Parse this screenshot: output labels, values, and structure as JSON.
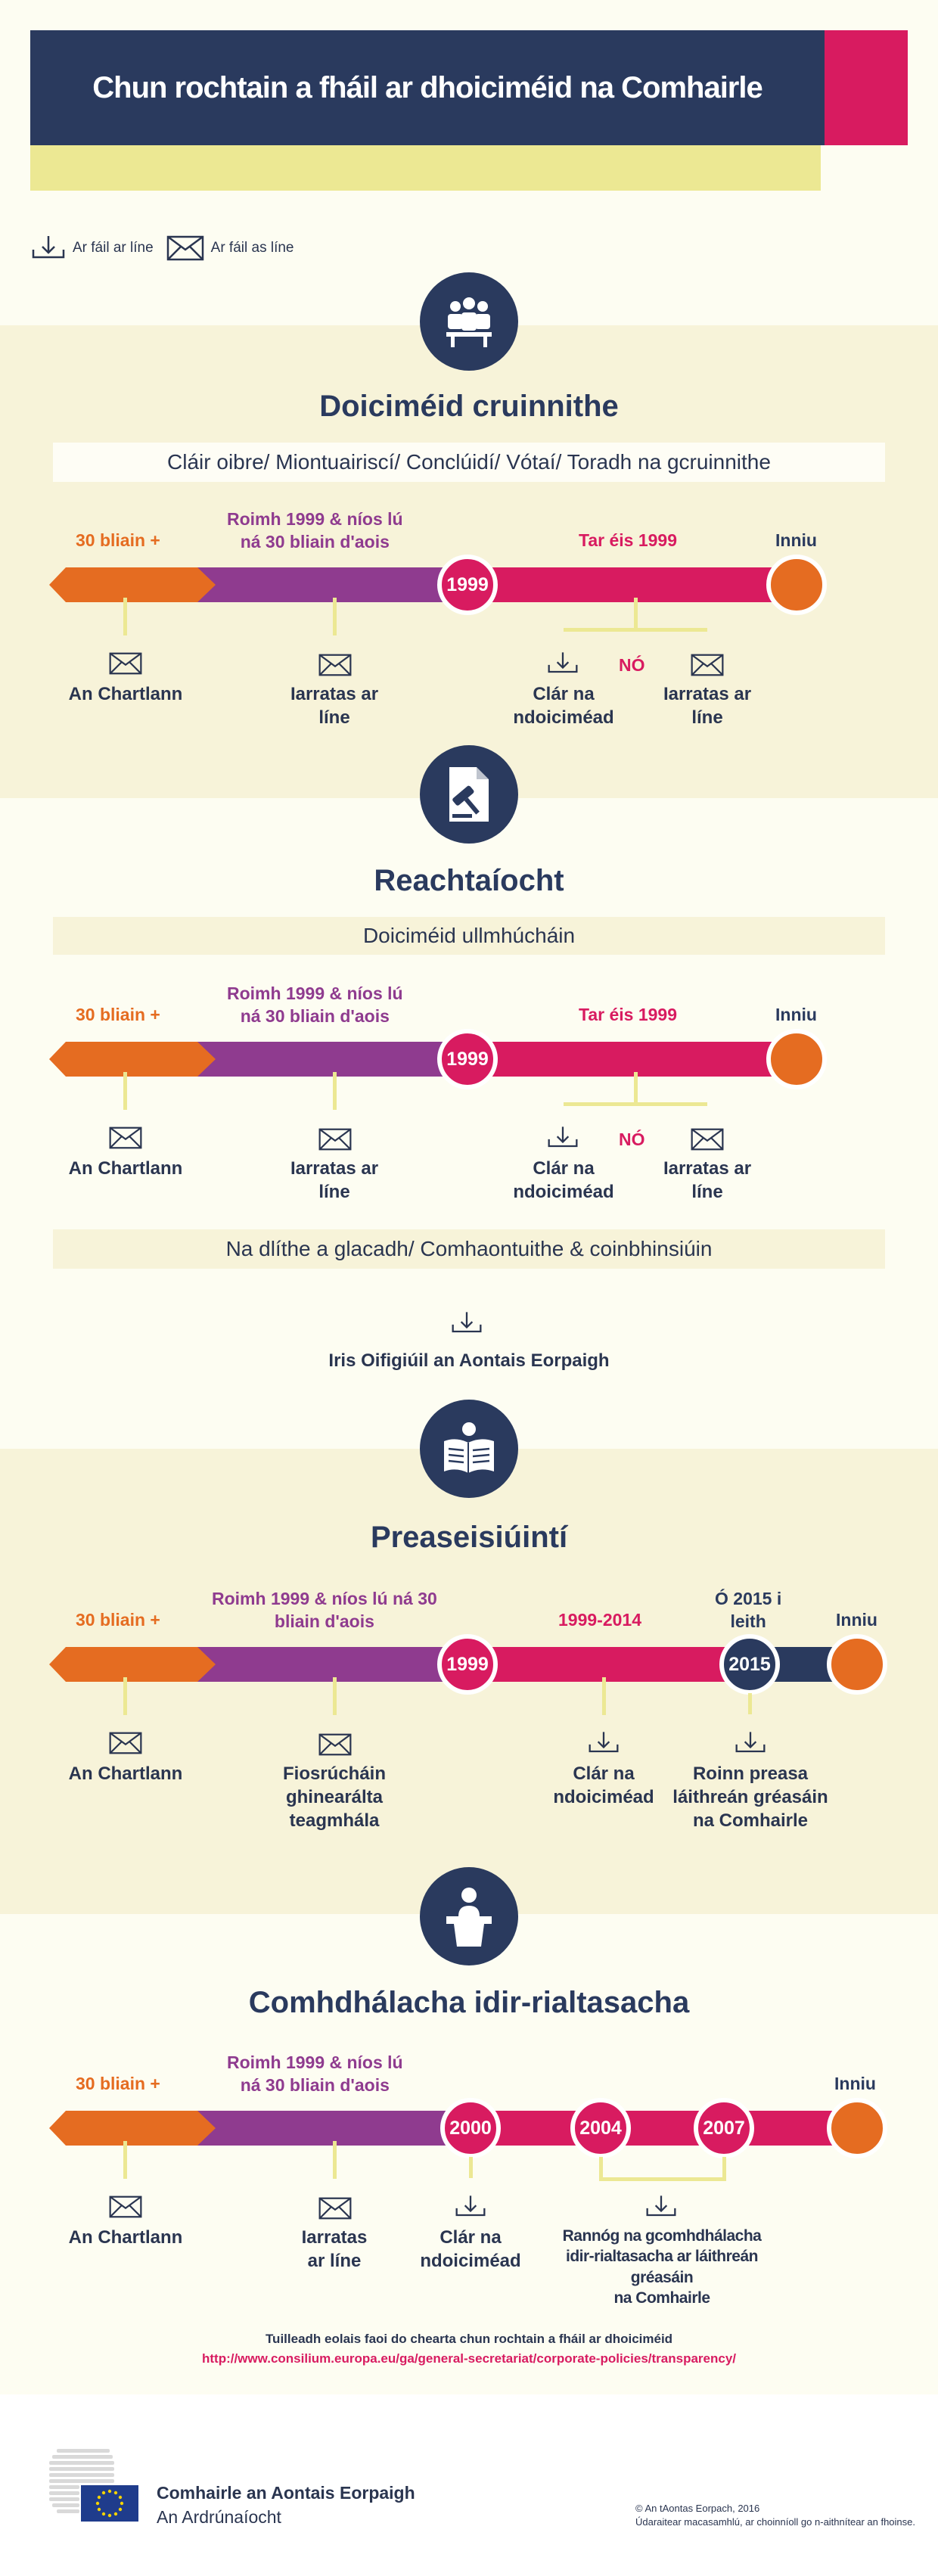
{
  "header": {
    "title": "Chun rochtain a fháil ar dhoiciméid na Comhairle"
  },
  "legend": {
    "online": "Ar fáil ar líne",
    "offline": "Ar fáil as líne"
  },
  "colors": {
    "navy": "#2a3a5e",
    "pink": "#d81b60",
    "orange": "#e56c21",
    "purple": "#8f3b8f",
    "yellow": "#ece893",
    "cream": "#f7f3d9"
  },
  "s1": {
    "title": "Doiciméid cruinnithe",
    "subtitle": "Cláir oibre/ Miontuairiscí/ Conclúidí/ Vótaí/ Toradh na gcruinnithe",
    "lbl30": "30 bliain +",
    "lblBefore": "Roimh 1999 & níos lú\nná 30 bliain d'aois",
    "lblAfter": "Tar éis 1999",
    "lblToday": "Inniu",
    "year": "1999",
    "item1": "An Chartlann",
    "item2": "Iarratas ar\nlíne",
    "item3": "Clár na\nndoiciméad",
    "or": "NÓ",
    "item4": "Iarratas ar\nlíne"
  },
  "s2": {
    "title": "Reachtaíocht",
    "subtitle": "Doiciméid ullmhúcháin",
    "lbl30": "30 bliain +",
    "lblBefore": "Roimh 1999 & níos lú\nná 30 bliain d'aois",
    "lblAfter": "Tar éis 1999",
    "lblToday": "Inniu",
    "year": "1999",
    "item1": "An Chartlann",
    "item2": "Iarratas ar\nlíne",
    "item3": "Clár na\nndoiciméad",
    "or": "NÓ",
    "item4": "Iarratas ar\nlíne",
    "subtitle2": "Na dlíthe a glacadh/ Comhaontuithe & coinbhinsiúin",
    "journal": "Iris Oifigiúil an Aontais Eorpaigh"
  },
  "s3": {
    "title": "Preaseisiúintí",
    "lbl30": "30 bliain +",
    "lblBefore": "Roimh 1999 & níos lú ná 30\nbliain d'aois",
    "lblMid": "1999-2014",
    "lbl2015": "Ó 2015 i\nleith",
    "lblToday": "Inniu",
    "year1": "1999",
    "year2": "2015",
    "item1": "An Chartlann",
    "item2": "Fiosrúcháin\nghinearálta\nteagmhála",
    "item3": "Clár na\nndoiciméad",
    "item4": "Roinn preasa\nláithreán gréasáin\nna Comhairle"
  },
  "s4": {
    "title": "Comhdhálacha idir-rialtasacha",
    "lbl30": "30 bliain +",
    "lblBefore": "Roimh 1999 & níos lú\nná 30 bliain d'aois",
    "lblToday": "Inniu",
    "year1": "2000",
    "year2": "2004",
    "year3": "2007",
    "item1": "An Chartlann",
    "item2": "Iarratas\nar líne",
    "item3": "Clár na\nndoiciméad",
    "item4": "Rannóg na gcomhdhálacha\nidir-rialtasacha ar láithreán gréasáin\nna Comhairle"
  },
  "footer": {
    "info": "Tuilleadh eolais faoi do chearta chun rochtain a fháil ar dhoiciméid",
    "link": "http://www.consilium.europa.eu/ga/general-secretariat/corporate-policies/transparency/",
    "org1": "Comhairle an Aontais Eorpaigh",
    "org2": "An Ardrúnaíocht",
    "copy1": "© An tAontas Eorpach, 2016",
    "copy2": "Údaraitear macasamhlú, ar choinníoll go n-aithnítear an fhoinse."
  }
}
